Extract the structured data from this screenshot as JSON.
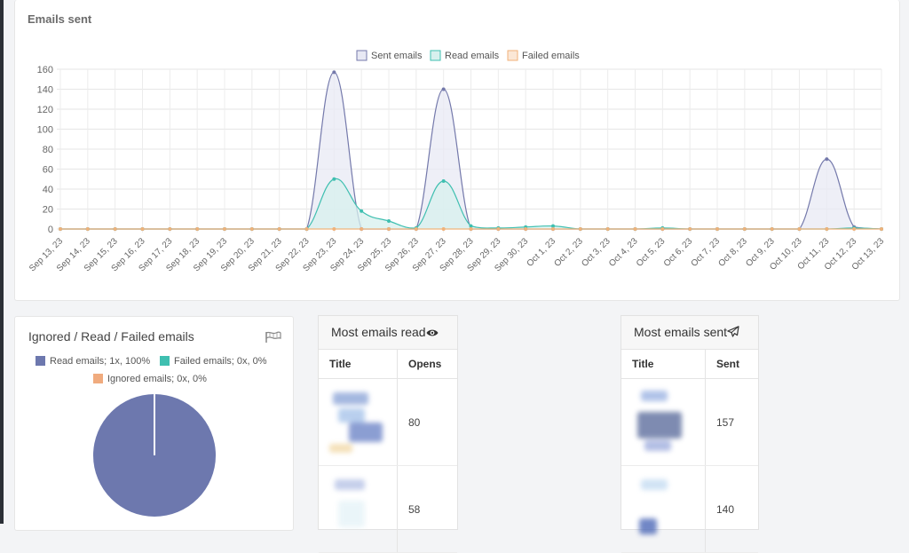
{
  "main_chart_card": {
    "title": "Emails sent"
  },
  "chart_data": {
    "type": "area",
    "categories": [
      "Sep 13, 23",
      "Sep 14, 23",
      "Sep 15, 23",
      "Sep 16, 23",
      "Sep 17, 23",
      "Sep 18, 23",
      "Sep 19, 23",
      "Sep 20, 23",
      "Sep 21, 23",
      "Sep 22, 23",
      "Sep 23, 23",
      "Sep 24, 23",
      "Sep 25, 23",
      "Sep 26, 23",
      "Sep 27, 23",
      "Sep 28, 23",
      "Sep 29, 23",
      "Sep 30, 23",
      "Oct 1, 23",
      "Oct 2, 23",
      "Oct 3, 23",
      "Oct 4, 23",
      "Oct 5, 23",
      "Oct 6, 23",
      "Oct 7, 23",
      "Oct 8, 23",
      "Oct 9, 23",
      "Oct 10, 23",
      "Oct 11, 23",
      "Oct 12, 23",
      "Oct 13, 23"
    ],
    "series": [
      {
        "name": "Sent emails",
        "color": "#7479ab",
        "fill": "#e8e9f4",
        "values": [
          0,
          0,
          0,
          0,
          0,
          0,
          0,
          0,
          0,
          0,
          157,
          0,
          0,
          0,
          140,
          0,
          0,
          0,
          0,
          0,
          0,
          0,
          0,
          0,
          0,
          0,
          0,
          0,
          70,
          2,
          0
        ]
      },
      {
        "name": "Read emails",
        "color": "#3fbfb0",
        "fill": "#d7f0ee",
        "values": [
          0,
          0,
          0,
          0,
          0,
          0,
          0,
          0,
          0,
          0,
          50,
          18,
          8,
          1,
          48,
          3,
          1,
          2,
          3,
          0,
          0,
          0,
          1,
          0,
          0,
          0,
          0,
          0,
          0,
          1,
          0
        ]
      },
      {
        "name": "Failed emails",
        "color": "#f0b27a",
        "fill": "#fbe7d6",
        "values": [
          0,
          0,
          0,
          0,
          0,
          0,
          0,
          0,
          0,
          0,
          0,
          0,
          0,
          0,
          0,
          0,
          0,
          0,
          0,
          0,
          0,
          0,
          0,
          0,
          0,
          0,
          0,
          0,
          0,
          0,
          0
        ]
      }
    ],
    "ylim": [
      0,
      160
    ],
    "yticks": [
      0,
      20,
      40,
      60,
      80,
      100,
      120,
      140,
      160
    ],
    "grid": true,
    "legend_position": "top-center"
  },
  "pie_card": {
    "title": "Ignored / Read / Failed emails",
    "icon": "flag-icon",
    "chart_data": {
      "type": "pie",
      "slices": [
        {
          "label": "Read emails; 1x, 100%",
          "value": 1,
          "color": "#6d78ae"
        },
        {
          "label": "Failed emails; 0x, 0%",
          "value": 0,
          "color": "#3fbfb0"
        },
        {
          "label": "Ignored emails; 0x, 0%",
          "value": 0,
          "color": "#f0ab7e"
        }
      ]
    }
  },
  "most_read": {
    "title": "Most emails read",
    "icon": "eye-icon",
    "columns": [
      "Title",
      "Opens"
    ],
    "rows": [
      {
        "value": "80"
      },
      {
        "value": "58"
      }
    ]
  },
  "most_sent": {
    "title": "Most emails sent",
    "icon": "paper-plane-icon",
    "columns": [
      "Title",
      "Sent"
    ],
    "rows": [
      {
        "value": "157"
      },
      {
        "value": "140"
      }
    ]
  }
}
